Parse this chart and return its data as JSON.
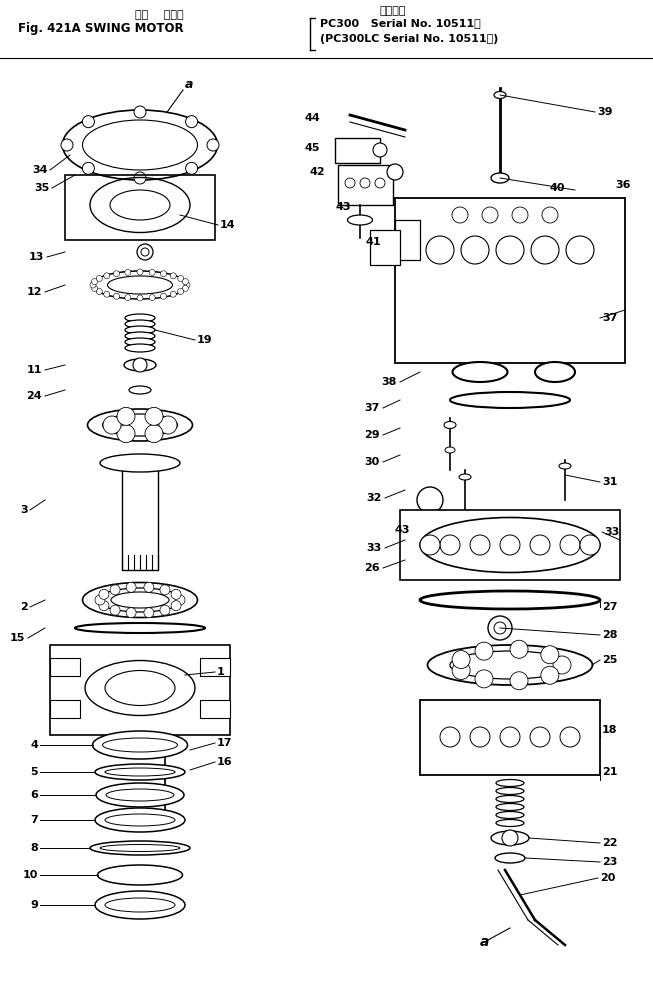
{
  "title_kanji1": "旋回    モータ",
  "title_line1": "Fig. 421A SWING MOTOR",
  "title_kanji2": "適用号機",
  "title_line2": "PC300   Serial No. 10511～",
  "title_line3": "(PC300LC Serial No. 10511～)",
  "bg_color": "#ffffff",
  "line_color": "#000000",
  "fig_width": 6.53,
  "fig_height": 9.9,
  "dpi": 100
}
